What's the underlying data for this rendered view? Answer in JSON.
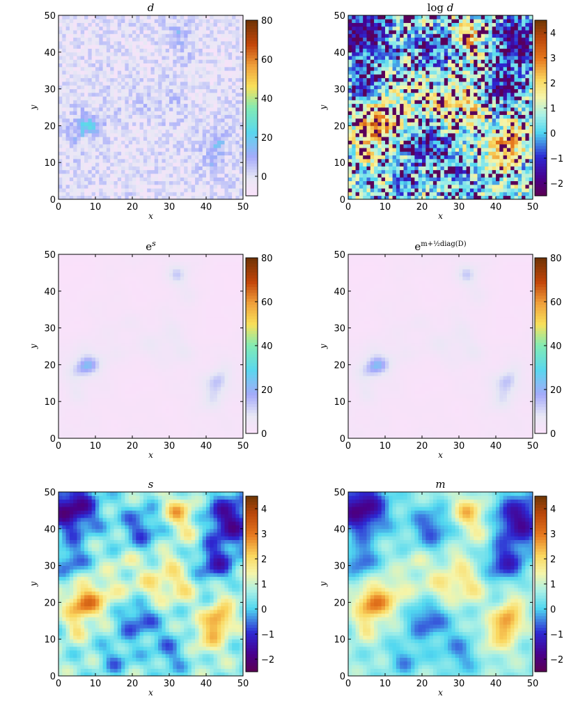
{
  "chart_data": [
    {
      "type": "heatmap",
      "title": "d",
      "xlabel": "x",
      "ylabel": "y",
      "xlim": [
        0,
        50
      ],
      "ylim": [
        0,
        50
      ],
      "xticks": [
        "0",
        "10",
        "20",
        "30",
        "40",
        "50"
      ],
      "yticks": [
        "0",
        "10",
        "20",
        "30",
        "40",
        "50"
      ],
      "colorbar_range": [
        -10,
        80
      ],
      "colorbar_ticks": [
        "80",
        "60",
        "40",
        "20",
        "0"
      ],
      "colormap": "linear",
      "grid": false
    },
    {
      "type": "heatmap",
      "title": "log d",
      "xlabel": "x",
      "ylabel": "y",
      "xlim": [
        0,
        50
      ],
      "ylim": [
        0,
        50
      ],
      "xticks": [
        "0",
        "10",
        "20",
        "30",
        "40",
        "50"
      ],
      "yticks": [
        "0",
        "10",
        "20",
        "30",
        "40",
        "50"
      ],
      "colorbar_range": [
        -2.5,
        4.5
      ],
      "colorbar_ticks": [
        "4",
        "3",
        "2",
        "1",
        "0",
        "−1",
        "−2"
      ],
      "colormap": "log",
      "grid": false
    },
    {
      "type": "heatmap",
      "title": "e^s",
      "xlabel": "x",
      "ylabel": "y",
      "xlim": [
        0,
        50
      ],
      "ylim": [
        0,
        50
      ],
      "xticks": [
        "0",
        "10",
        "20",
        "30",
        "40",
        "50"
      ],
      "yticks": [
        "0",
        "10",
        "20",
        "30",
        "40",
        "50"
      ],
      "colorbar_range": [
        0,
        80
      ],
      "colorbar_ticks": [
        "80",
        "60",
        "40",
        "20",
        "0"
      ],
      "colormap": "linear",
      "grid": false
    },
    {
      "type": "heatmap",
      "title": "e^{m+½diag(D)}",
      "xlabel": "x",
      "ylabel": "y",
      "xlim": [
        0,
        50
      ],
      "ylim": [
        0,
        50
      ],
      "xticks": [
        "0",
        "10",
        "20",
        "30",
        "40",
        "50"
      ],
      "yticks": [
        "0",
        "10",
        "20",
        "30",
        "40",
        "50"
      ],
      "colorbar_range": [
        0,
        80
      ],
      "colorbar_ticks": [
        "80",
        "60",
        "40",
        "20",
        "0"
      ],
      "colormap": "linear",
      "grid": false
    },
    {
      "type": "heatmap",
      "title": "s",
      "xlabel": "x",
      "ylabel": "y",
      "xlim": [
        0,
        50
      ],
      "ylim": [
        0,
        50
      ],
      "xticks": [
        "0",
        "10",
        "20",
        "30",
        "40",
        "50"
      ],
      "yticks": [
        "0",
        "10",
        "20",
        "30",
        "40",
        "50"
      ],
      "colorbar_range": [
        -2.5,
        4.5
      ],
      "colorbar_ticks": [
        "4",
        "3",
        "2",
        "1",
        "0",
        "−1",
        "−2"
      ],
      "colormap": "log",
      "grid": false
    },
    {
      "type": "heatmap",
      "title": "m",
      "xlabel": "x",
      "ylabel": "y",
      "xlim": [
        0,
        50
      ],
      "ylim": [
        0,
        50
      ],
      "xticks": [
        "0",
        "10",
        "20",
        "30",
        "40",
        "50"
      ],
      "yticks": [
        "0",
        "10",
        "20",
        "30",
        "40",
        "50"
      ],
      "colorbar_range": [
        -2.5,
        4.5
      ],
      "colorbar_ticks": [
        "4",
        "3",
        "2",
        "1",
        "0",
        "−1",
        "−2"
      ],
      "colormap": "log",
      "grid": false
    }
  ]
}
